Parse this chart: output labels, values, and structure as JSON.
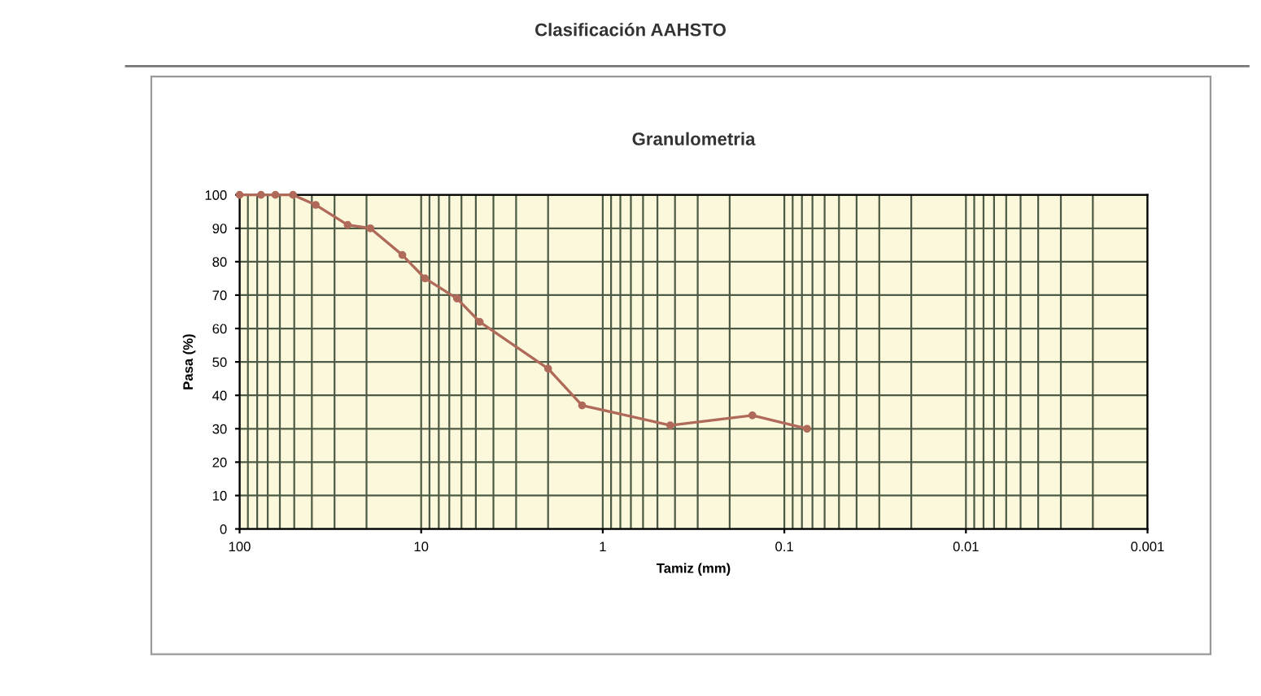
{
  "chart_data": {
    "type": "line",
    "title": "Clasificación AAHSTO",
    "subtitle": "Granulometria",
    "xlabel": "Tamiz (mm)",
    "ylabel": "Pasa (%)",
    "x": [
      100,
      76.2,
      63.5,
      50.8,
      38.1,
      25.4,
      19.05,
      12.7,
      9.52,
      6.35,
      4.76,
      2.0,
      1.3,
      0.425,
      0.15,
      0.075
    ],
    "series": [
      {
        "color": "#b06a5a",
        "values": [
          100,
          100,
          100,
          100,
          97,
          91,
          90,
          82,
          75,
          69,
          62,
          48,
          37,
          31,
          34,
          30
        ]
      }
    ],
    "log": "x",
    "xlim": [
      100,
      0.001
    ],
    "xticks": [
      100,
      10,
      1,
      0.1,
      0.01,
      0.001
    ],
    "ylim": [
      0,
      100
    ],
    "yticks": [
      0,
      10,
      20,
      30,
      40,
      50,
      60,
      70,
      80,
      90,
      100
    ],
    "grid": true,
    "marker": "circle",
    "line_style": "solid",
    "legend": false
  }
}
